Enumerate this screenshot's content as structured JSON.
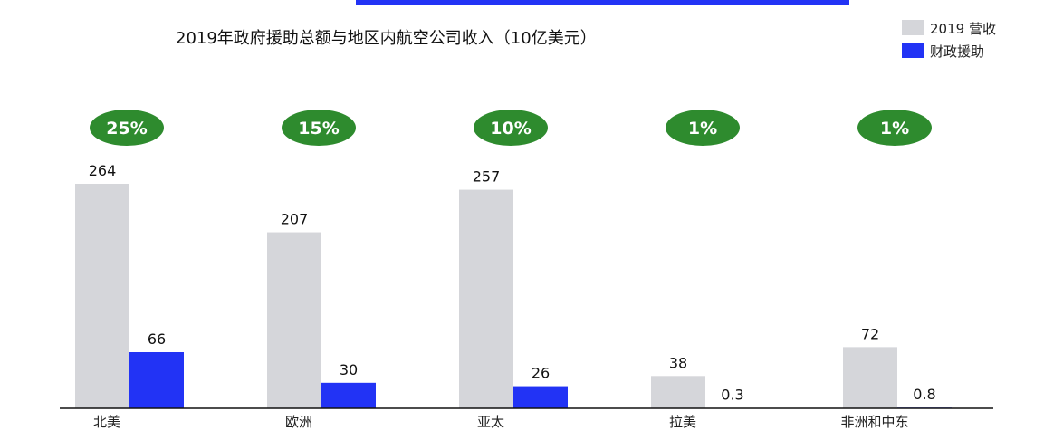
{
  "chart_data": {
    "type": "bar",
    "title": "2019年政府援助总额与地区内航空公司收入（10亿美元）",
    "categories": [
      "北美",
      "欧洲",
      "亚太",
      "拉美",
      "非洲和中东"
    ],
    "series": [
      {
        "name": "2019 营收",
        "values": [
          264,
          207,
          257,
          38,
          72
        ],
        "color": "#d5d6da"
      },
      {
        "name": "财政援助",
        "values": [
          66,
          30,
          26,
          0.3,
          0.8
        ],
        "color": "#2233f5"
      }
    ],
    "percent_labels": [
      "25%",
      "15%",
      "10%",
      "1%",
      "1%"
    ],
    "percent_badge_color": "#2e8b2e",
    "ylim": [
      0,
      270
    ],
    "grid": false,
    "legend_position": "top-right"
  }
}
